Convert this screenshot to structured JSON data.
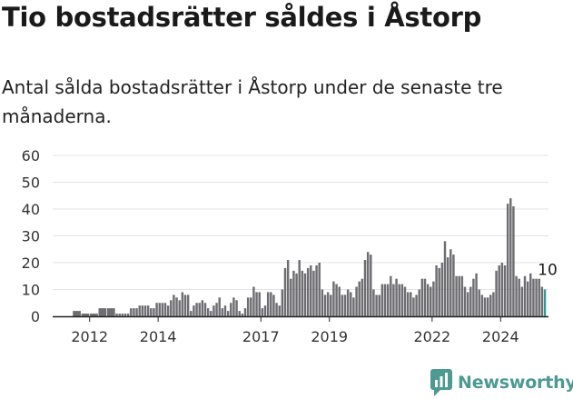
{
  "title": "Tio bostadsrätter såldes i Åstorp",
  "subtitle": "Antal sålda bostadsrätter i Åstorp under de senaste tre månaderna.",
  "brand": {
    "name": "Newsworthy",
    "icon": "newsworthy-logo-icon",
    "color": "#4c9a92"
  },
  "chart_data": {
    "type": "bar",
    "title": "Tio bostadsrätter såldes i Åstorp",
    "xlabel": "",
    "ylabel": "",
    "ylim": [
      0,
      60
    ],
    "yticks": [
      0,
      10,
      20,
      30,
      40,
      50,
      60
    ],
    "grid": true,
    "x_start": "2011-01",
    "x_end": "2025-01",
    "xtick_labels": [
      {
        "label": "2012",
        "date": "2012-01"
      },
      {
        "label": "2014",
        "date": "2014-01"
      },
      {
        "label": "2017",
        "date": "2017-01"
      },
      {
        "label": "2019",
        "date": "2019-01"
      },
      {
        "label": "2022",
        "date": "2022-01"
      },
      {
        "label": "2024",
        "date": "2024-01"
      }
    ],
    "bar_color": "#6d6d72",
    "highlight_color": "#2e9a94",
    "highlight_label": "10",
    "series": [
      {
        "frequency": "quarterly",
        "start": "2011-07",
        "values": [
          2,
          1,
          1,
          3,
          3
        ]
      },
      {
        "frequency": "monthly",
        "start": "2012-10",
        "values": [
          1,
          1,
          1,
          1,
          1,
          3,
          3,
          3,
          4,
          4,
          4,
          4,
          3,
          3,
          5,
          5,
          5,
          5,
          4,
          6,
          8,
          7,
          6,
          9,
          8,
          8,
          2,
          4,
          5,
          5,
          6,
          5,
          3,
          2,
          4,
          5,
          7,
          3,
          4,
          2,
          5,
          7,
          6,
          2,
          1,
          3,
          7,
          7,
          11,
          9,
          9,
          3,
          4,
          9,
          9,
          8,
          5,
          4,
          10,
          18,
          21,
          14,
          17,
          16,
          21,
          17,
          16,
          18,
          19,
          17,
          19,
          20,
          10,
          8,
          9,
          8,
          13,
          12,
          11,
          8,
          8,
          10,
          9,
          7,
          11,
          13,
          14,
          21,
          24,
          23,
          10,
          8,
          8,
          12,
          12,
          12,
          15,
          12,
          14,
          12,
          12,
          11,
          9,
          9,
          7,
          8,
          10,
          14,
          14,
          12,
          11,
          13,
          19,
          18,
          20,
          28,
          22,
          25,
          23,
          15,
          15,
          15,
          11,
          9,
          11,
          14,
          16,
          10,
          8,
          7,
          7,
          8,
          9,
          17,
          19,
          20,
          19,
          42,
          44,
          41,
          15,
          14,
          11,
          15,
          13,
          16,
          14,
          14,
          14,
          11,
          10
        ]
      }
    ]
  }
}
